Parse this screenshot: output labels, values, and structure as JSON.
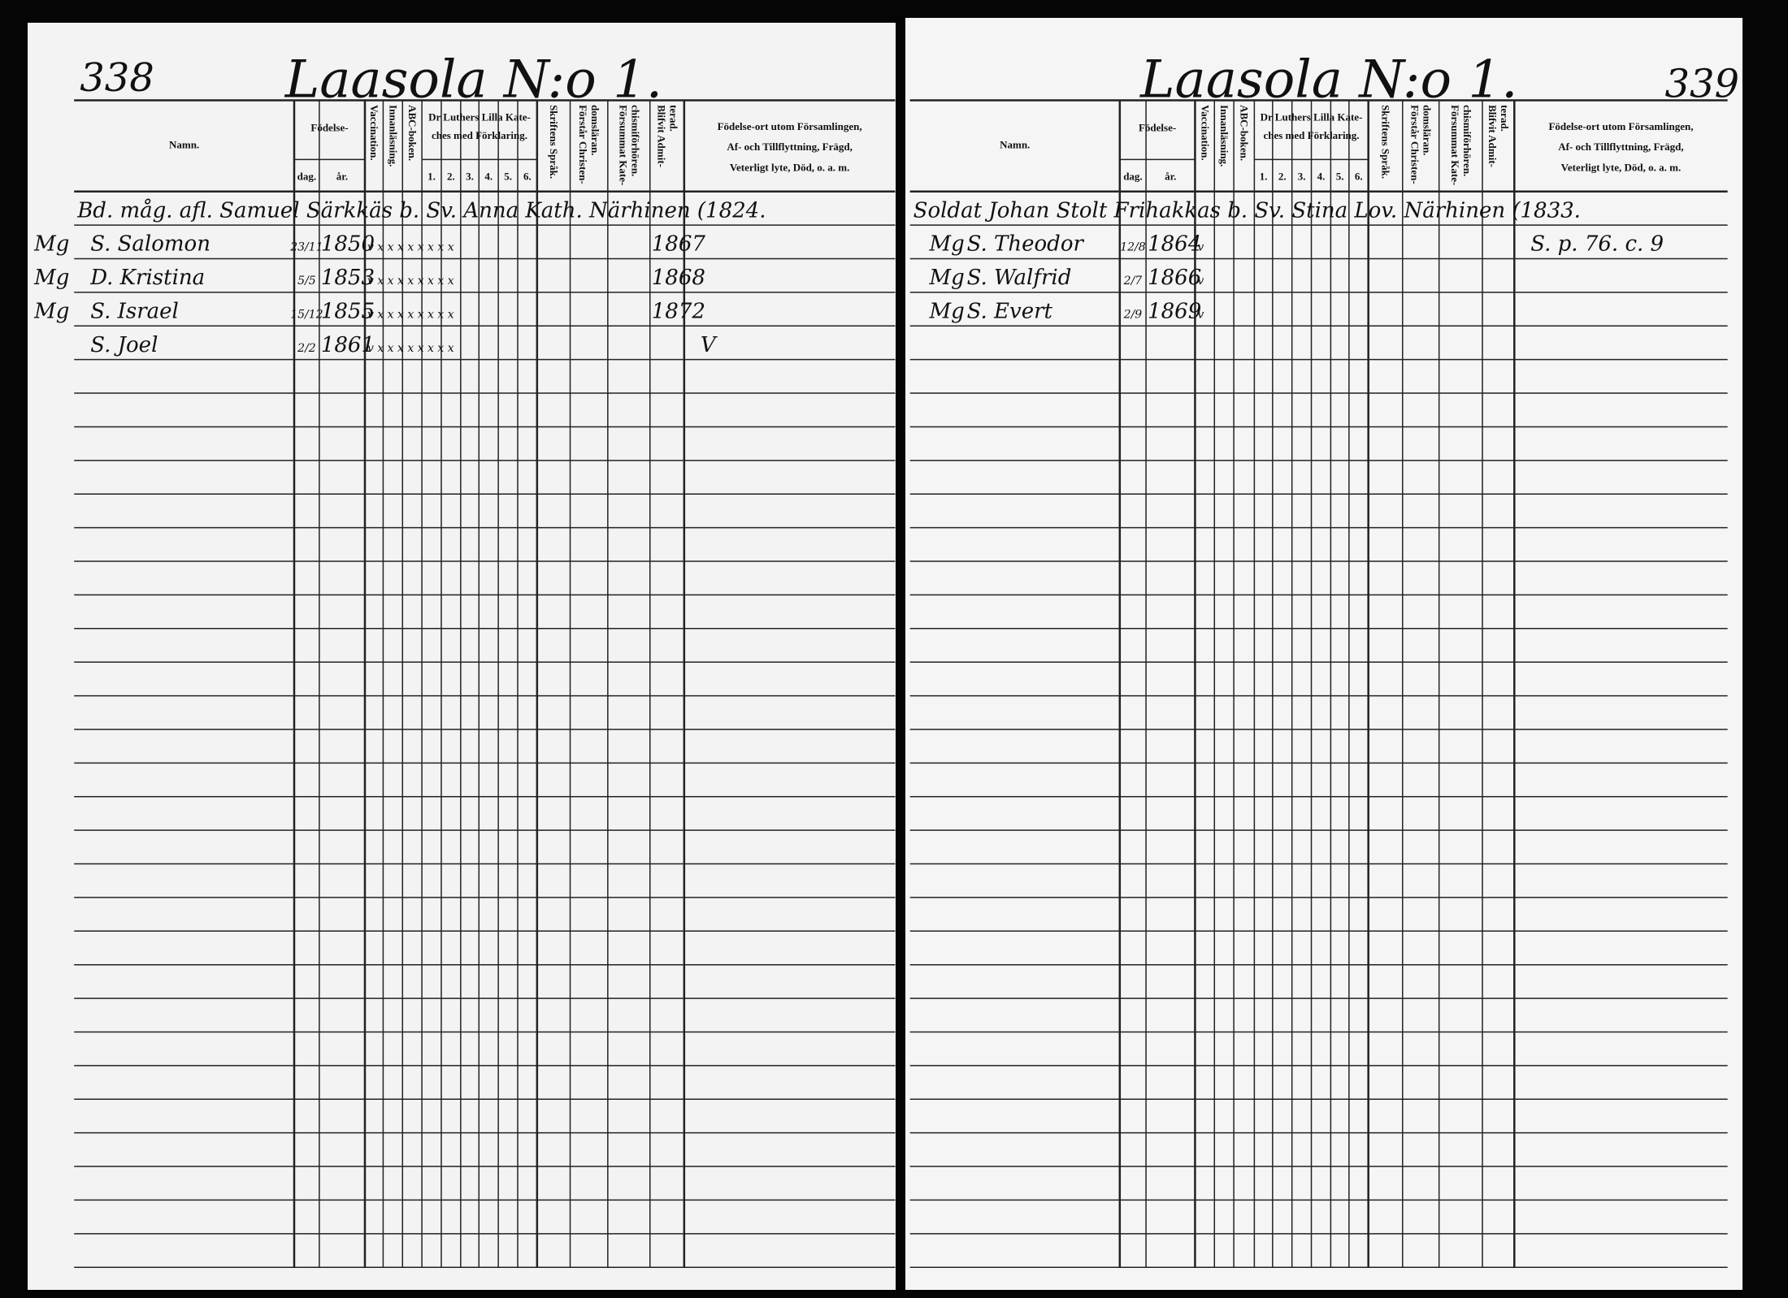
{
  "left_page": {
    "page_number": "338",
    "title": "Laasola N:o 1.",
    "header": {
      "name": "Namn.",
      "birth": "Födelse-",
      "day": "dag.",
      "year": "år.",
      "vaccination": [
        "Vaccination."
      ],
      "reading": [
        "Innanläsning."
      ],
      "abc": [
        "ABC-boken."
      ],
      "catechism": [
        "Dr Luthers Lilla Kate-",
        "ches med Förklaring."
      ],
      "parts": [
        "1.",
        "2.",
        "3.",
        "4.",
        "5.",
        "6."
      ],
      "scripture": [
        "Skriftens Språk."
      ],
      "understands": [
        "Förstår Christen-",
        "domsläran."
      ],
      "neglected": [
        "Försummat Kate-",
        "chismiförhören."
      ],
      "admitted": [
        "Blifvit Admit-",
        "terad."
      ],
      "remarks": [
        "Födelse-ort utom Församlingen,",
        "Af- och Tillflyttning, Frägd,",
        "Veterligt lyte, Död, o. a. m."
      ]
    },
    "head_row": "Bd. måg. afl. Samuel Särkkäs b. Sv. Anna Kath. Närhinen (1824.",
    "rows": [
      {
        "margin": "Mg",
        "name": "S. Salomon",
        "day": "23/11",
        "year": "1850",
        "marks": "v x x x x x x x x",
        "admitted": "1867"
      },
      {
        "margin": "Mg",
        "name": "D. Kristina",
        "day": "5/5",
        "year": "1853",
        "marks": "v x x x x x x x x",
        "admitted": "1868"
      },
      {
        "margin": "Mg",
        "name": "S. Israel",
        "day": "15/12",
        "year": "1855",
        "marks": "v x x x x x x x x",
        "admitted": "1872"
      },
      {
        "name": "S. Joel",
        "day": "2/2",
        "year": "1861",
        "marks": "v x x x x x x x x",
        "remarks": "V"
      }
    ]
  },
  "right_page": {
    "page_number": "339",
    "title": "Laasola N:o 1.",
    "header": {
      "name": "Namn.",
      "birth": "Födelse-",
      "day": "dag.",
      "year": "år.",
      "vaccination": [
        "Vaccination."
      ],
      "reading": [
        "Innanläsning."
      ],
      "abc": [
        "ABC-boken."
      ],
      "catechism": [
        "Dr Luthers Lilla Kate-",
        "ches med Förklaring."
      ],
      "parts": [
        "1.",
        "2.",
        "3.",
        "4.",
        "5.",
        "6."
      ],
      "scripture": [
        "Skriftens Språk."
      ],
      "understands": [
        "Förstår Christen-",
        "domsläran."
      ],
      "neglected": [
        "Försummat Kate-",
        "chismiförhören."
      ],
      "admitted": [
        "Blifvit Admit-",
        "terad."
      ],
      "remarks": [
        "Födelse-ort utom Församlingen,",
        "Af- och Tillflyttning, Frägd,",
        "Veterligt lyte, Död, o. a. m."
      ]
    },
    "head_row": "Soldat Johan Stolt Frihakkas b. Sv. Stina Lov. Närhinen (1833.",
    "rows": [
      {
        "margin": "Mg",
        "name": "S. Theodor",
        "day": "12/8",
        "year": "1864",
        "marks": "v",
        "remarks": "S. p. 76. c. 9"
      },
      {
        "margin": "Mg",
        "name": "S. Walfrid",
        "day": "2/7",
        "year": "1866",
        "marks": "v"
      },
      {
        "margin": "Mg",
        "name": "S. Evert",
        "day": "2/9",
        "year": "1869",
        "marks": "v"
      }
    ]
  }
}
